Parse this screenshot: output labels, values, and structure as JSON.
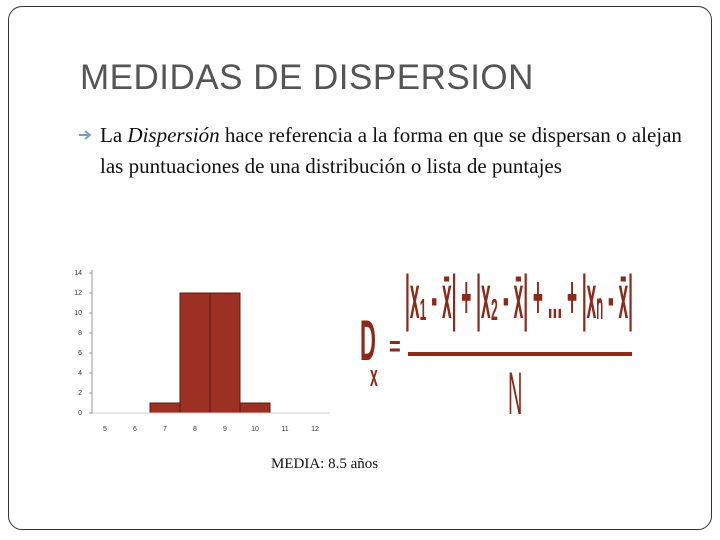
{
  "title": "MEDIDAS DE DISPERSION",
  "bullet": {
    "text_before": "La ",
    "emphasis": "Dispersión",
    "text_after": " hace referencia a la forma en que se dispersan o alejan las puntuaciones de una distribución o lista de puntajes"
  },
  "chart_data": {
    "type": "bar",
    "categories": [
      "5",
      "6",
      "7",
      "8",
      "9",
      "10",
      "11",
      "12"
    ],
    "values": [
      0,
      0,
      1,
      12,
      12,
      1,
      0,
      0
    ],
    "color": "#9c3023",
    "ylim": [
      0,
      14
    ],
    "yticks": [
      0,
      2,
      4,
      6,
      8,
      10,
      12,
      14
    ]
  },
  "caption": "MEDIA: 8.5 años",
  "formula": {
    "lhs": "D",
    "lhs_sub": "x",
    "equals": "=",
    "numerator": "|x₁ - x̄| + |x₂ - x̄| + ... + |xₙ - x̄|",
    "denominator": "N"
  }
}
